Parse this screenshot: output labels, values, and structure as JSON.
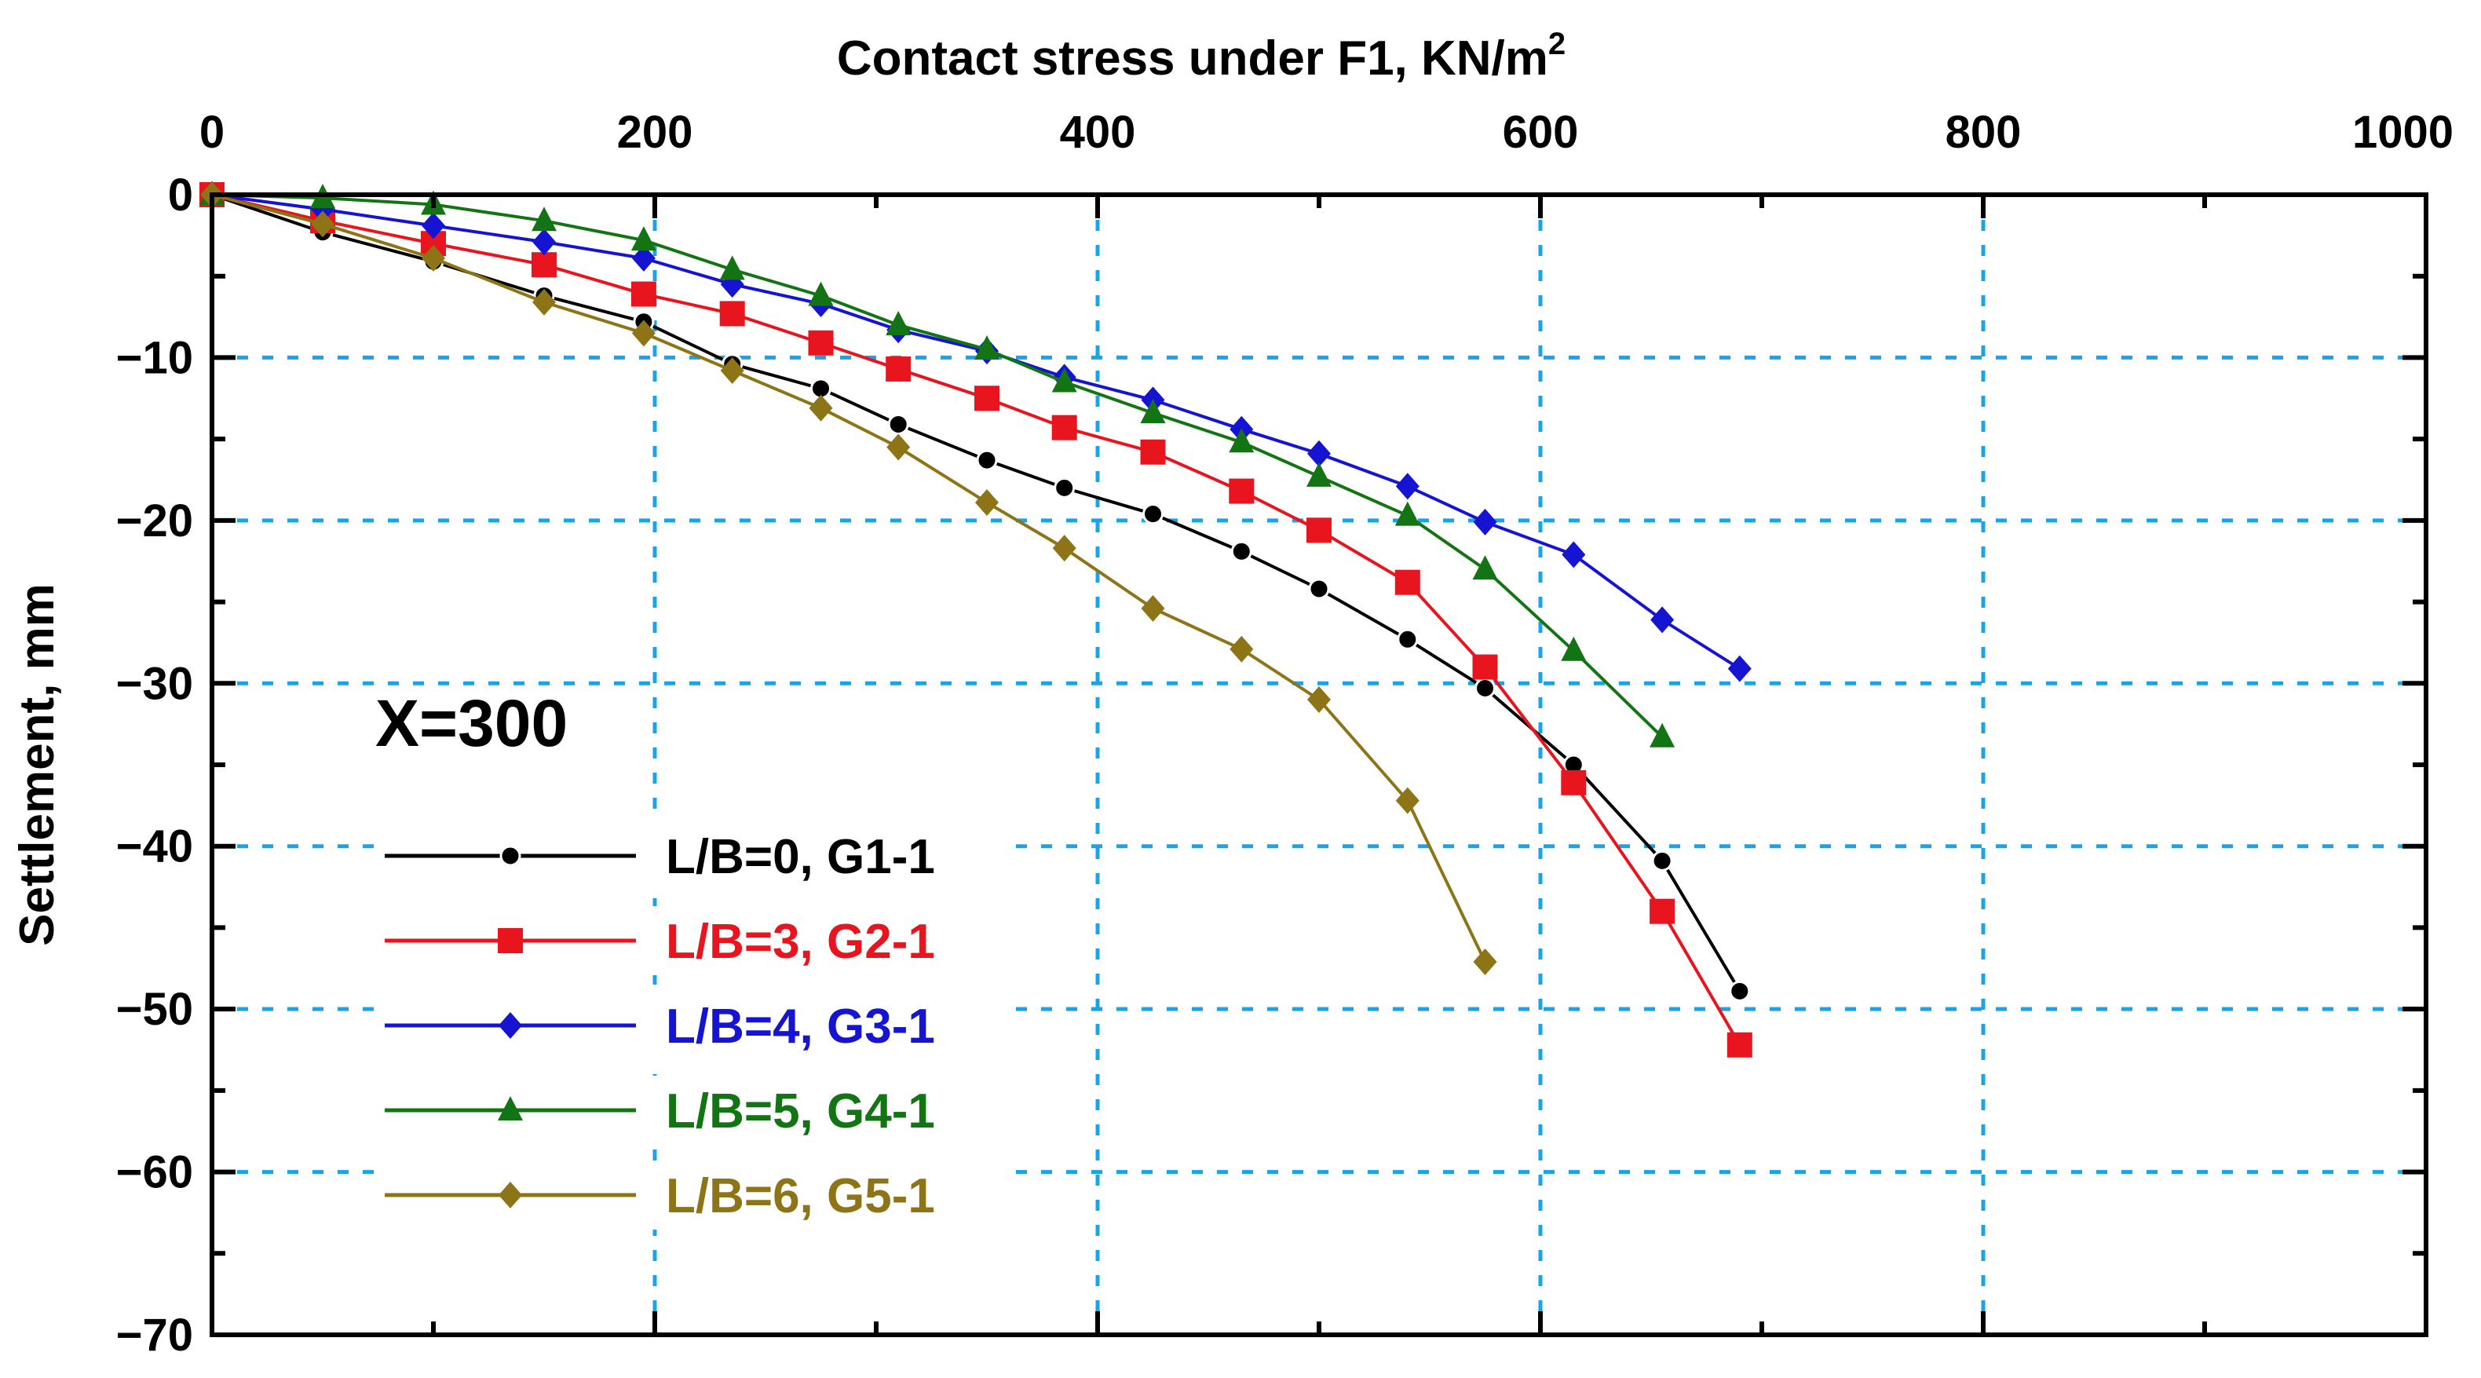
{
  "chart_data": {
    "type": "line",
    "title": "",
    "xlabel": "Contact  stress under F1, KN/m",
    "xlabel_superscript": "2",
    "ylabel": "Settlement, mm",
    "xlim": [
      0,
      1000
    ],
    "ylim": [
      -70,
      0
    ],
    "x_axis_position": "top",
    "xticks": [
      0,
      200,
      400,
      600,
      800,
      1000
    ],
    "yticks": [
      0,
      -10,
      -20,
      -30,
      -40,
      -50,
      -60,
      -70
    ],
    "xtick_labels": [
      "0",
      "200",
      "400",
      "600",
      "800",
      "1000"
    ],
    "ytick_labels": [
      "0",
      "−10",
      "−20",
      "−30",
      "−40",
      "−50",
      "−60",
      "−70"
    ],
    "grid": true,
    "legend_position": "lower-left",
    "annotation": "X=300",
    "series": [
      {
        "name": "L/B=0, G1-1",
        "color": "#000000",
        "marker": "circle",
        "x": [
          0,
          50,
          100,
          150,
          195,
          235,
          275,
          310,
          350,
          385,
          425,
          465,
          500,
          540,
          575,
          615,
          655,
          690
        ],
        "y": [
          0,
          -2.3,
          -4.1,
          -6.2,
          -7.8,
          -10.4,
          -11.9,
          -14.1,
          -16.3,
          -18.0,
          -19.6,
          -21.9,
          -24.2,
          -27.3,
          -30.3,
          -35.0,
          -40.9,
          -48.9
        ]
      },
      {
        "name": "L/B=3, G2-1",
        "color": "#e8141e",
        "marker": "square",
        "x": [
          0,
          50,
          100,
          150,
          195,
          235,
          275,
          310,
          350,
          385,
          425,
          465,
          500,
          540,
          575,
          615,
          655,
          690
        ],
        "y": [
          0,
          -1.6,
          -3.0,
          -4.3,
          -6.1,
          -7.3,
          -9.1,
          -10.7,
          -12.5,
          -14.3,
          -15.8,
          -18.2,
          -20.6,
          -23.8,
          -29.0,
          -36.1,
          -44.0,
          -52.2
        ]
      },
      {
        "name": "L/B=4, G3-1",
        "color": "#1414d2",
        "marker": "diamond",
        "x": [
          0,
          50,
          100,
          150,
          195,
          235,
          275,
          310,
          350,
          385,
          425,
          465,
          500,
          540,
          575,
          615,
          655,
          690
        ],
        "y": [
          0,
          -0.9,
          -1.9,
          -2.9,
          -3.9,
          -5.5,
          -6.7,
          -8.3,
          -9.6,
          -11.2,
          -12.6,
          -14.4,
          -15.9,
          -17.9,
          -20.1,
          -22.1,
          -26.1,
          -29.1
        ]
      },
      {
        "name": "L/B=5, G4-1",
        "color": "#137413",
        "marker": "triangle",
        "x": [
          0,
          50,
          100,
          150,
          195,
          235,
          275,
          310,
          350,
          385,
          425,
          465,
          500,
          540,
          575,
          615,
          655
        ],
        "y": [
          0,
          -0.2,
          -0.6,
          -1.6,
          -2.8,
          -4.6,
          -6.2,
          -8.0,
          -9.5,
          -11.5,
          -13.4,
          -15.2,
          -17.3,
          -19.7,
          -23.0,
          -28.0,
          -33.3
        ]
      },
      {
        "name": "L/B=6, G5-1",
        "color": "#8c7417",
        "marker": "diamond",
        "x": [
          0,
          50,
          100,
          150,
          195,
          235,
          275,
          310,
          350,
          385,
          425,
          465,
          500,
          540,
          575
        ],
        "y": [
          0,
          -1.8,
          -3.9,
          -6.6,
          -8.5,
          -10.8,
          -13.1,
          -15.5,
          -18.9,
          -21.7,
          -25.4,
          -27.9,
          -31.0,
          -37.2,
          -47.1
        ]
      }
    ]
  }
}
